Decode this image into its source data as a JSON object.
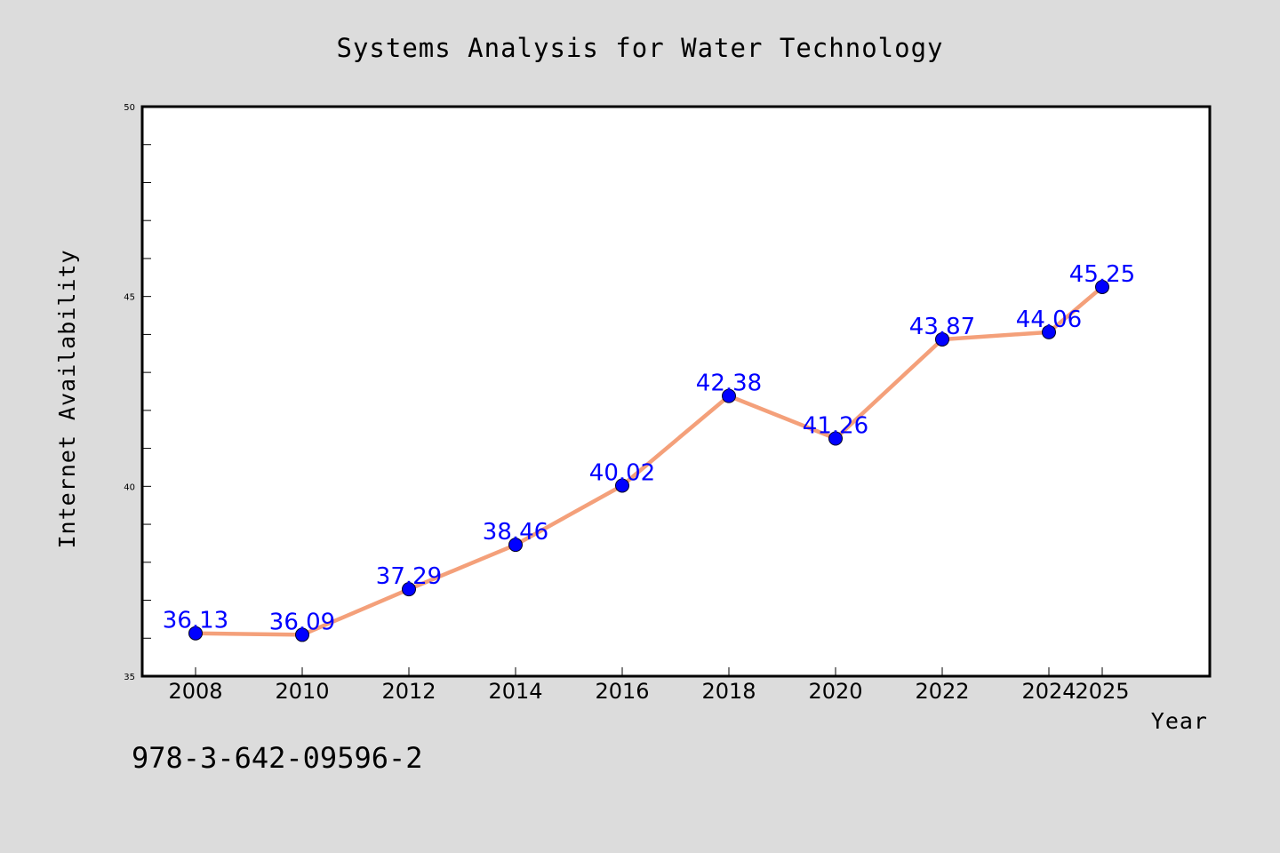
{
  "chart_data": {
    "type": "line",
    "title": "Systems Analysis for Water Technology",
    "xlabel": "Year",
    "ylabel": "Internet Availability",
    "categories": [
      "2008",
      "2010",
      "2012",
      "2014",
      "2016",
      "2018",
      "2020",
      "2022",
      "2024",
      "2025"
    ],
    "series": [
      {
        "values": [
          36.13,
          36.09,
          37.29,
          38.46,
          40.02,
          42.38,
          41.26,
          43.87,
          44.06,
          45.25
        ],
        "labels": [
          "36.13",
          "36.09",
          "37.29",
          "38.46",
          "40.02",
          "42.38",
          "41.26",
          "43.87",
          "44.06",
          "45.25"
        ]
      }
    ],
    "ylim": [
      35,
      50
    ],
    "y_ticks": [
      "35",
      "40",
      "45",
      "50"
    ],
    "y_minor_step": 1,
    "grid": false,
    "colors": {
      "line": "#f4a07a",
      "marker": "#0000ff",
      "data_label": "#0000ff",
      "background": "#dcdcdc",
      "plot_area": "#ffffff"
    }
  },
  "footer": {
    "isbn": "978-3-642-09596-2"
  }
}
